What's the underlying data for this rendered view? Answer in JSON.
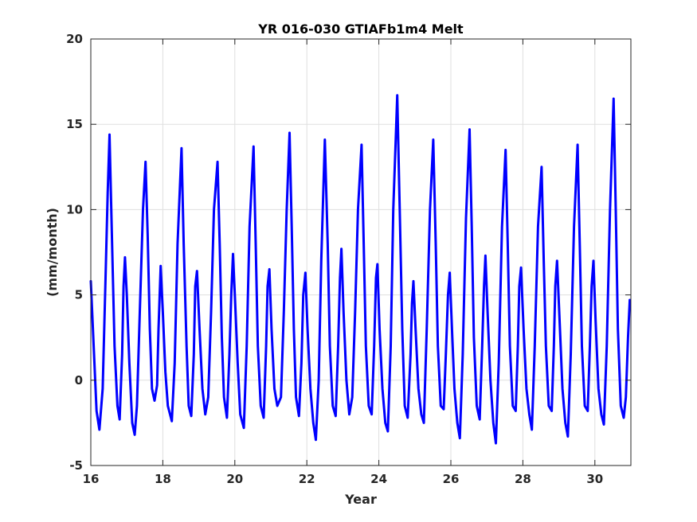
{
  "chart_data": {
    "type": "line",
    "title": "YR 016-030 GTIAFb1m4 Melt",
    "xlabel": "Year",
    "ylabel": "(mm/month)",
    "xlim": [
      16,
      31
    ],
    "ylim": [
      -5,
      20
    ],
    "xticks": [
      16,
      18,
      20,
      22,
      24,
      26,
      28,
      30
    ],
    "yticks": [
      -5,
      0,
      5,
      10,
      15,
      20
    ],
    "grid": true,
    "legend": "none",
    "series": [
      {
        "color": "#0000ff",
        "points": [
          [
            16.0,
            5.8
          ],
          [
            16.08,
            2.0
          ],
          [
            16.16,
            -1.8
          ],
          [
            16.24,
            -2.9
          ],
          [
            16.33,
            -0.5
          ],
          [
            16.41,
            6.0
          ],
          [
            16.47,
            11.0
          ],
          [
            16.52,
            14.4
          ],
          [
            16.58,
            9.0
          ],
          [
            16.66,
            2.0
          ],
          [
            16.74,
            -1.5
          ],
          [
            16.8,
            -2.3
          ],
          [
            16.87,
            1.5
          ],
          [
            16.91,
            5.5
          ],
          [
            16.95,
            7.2
          ],
          [
            17.0,
            5.0
          ],
          [
            17.07,
            1.0
          ],
          [
            17.15,
            -2.5
          ],
          [
            17.22,
            -3.2
          ],
          [
            17.28,
            -1.5
          ],
          [
            17.36,
            4.0
          ],
          [
            17.45,
            10.0
          ],
          [
            17.52,
            12.8
          ],
          [
            17.58,
            8.5
          ],
          [
            17.64,
            3.0
          ],
          [
            17.7,
            -0.5
          ],
          [
            17.77,
            -1.2
          ],
          [
            17.84,
            -0.3
          ],
          [
            17.88,
            3.0
          ],
          [
            17.94,
            6.7
          ],
          [
            18.0,
            4.0
          ],
          [
            18.07,
            0.5
          ],
          [
            18.14,
            -1.5
          ],
          [
            18.25,
            -2.4
          ],
          [
            18.33,
            1.0
          ],
          [
            18.41,
            8.0
          ],
          [
            18.52,
            13.6
          ],
          [
            18.58,
            8.0
          ],
          [
            18.66,
            2.0
          ],
          [
            18.72,
            -1.5
          ],
          [
            18.79,
            -2.1
          ],
          [
            18.86,
            1.5
          ],
          [
            18.9,
            5.5
          ],
          [
            18.95,
            6.4
          ],
          [
            19.02,
            3.0
          ],
          [
            19.1,
            -0.5
          ],
          [
            19.18,
            -2.0
          ],
          [
            19.26,
            -1.0
          ],
          [
            19.34,
            4.0
          ],
          [
            19.42,
            10.0
          ],
          [
            19.52,
            12.8
          ],
          [
            19.58,
            8.0
          ],
          [
            19.64,
            2.5
          ],
          [
            19.7,
            -1.0
          ],
          [
            19.78,
            -2.2
          ],
          [
            19.85,
            1.5
          ],
          [
            19.9,
            5.0
          ],
          [
            19.95,
            7.4
          ],
          [
            20.0,
            5.0
          ],
          [
            20.08,
            1.0
          ],
          [
            20.15,
            -2.0
          ],
          [
            20.25,
            -2.8
          ],
          [
            20.33,
            2.0
          ],
          [
            20.41,
            9.0
          ],
          [
            20.52,
            13.7
          ],
          [
            20.58,
            8.0
          ],
          [
            20.64,
            2.0
          ],
          [
            20.72,
            -1.5
          ],
          [
            20.8,
            -2.2
          ],
          [
            20.87,
            2.0
          ],
          [
            20.91,
            5.5
          ],
          [
            20.96,
            6.5
          ],
          [
            21.02,
            3.0
          ],
          [
            21.1,
            -0.5
          ],
          [
            21.18,
            -1.5
          ],
          [
            21.28,
            -1.0
          ],
          [
            21.36,
            4.0
          ],
          [
            21.44,
            10.0
          ],
          [
            21.52,
            14.5
          ],
          [
            21.58,
            9.0
          ],
          [
            21.64,
            3.0
          ],
          [
            21.7,
            -1.0
          ],
          [
            21.78,
            -2.1
          ],
          [
            21.85,
            1.0
          ],
          [
            21.9,
            5.0
          ],
          [
            21.96,
            6.3
          ],
          [
            22.02,
            3.0
          ],
          [
            22.1,
            -0.5
          ],
          [
            22.18,
            -2.5
          ],
          [
            22.25,
            -3.5
          ],
          [
            22.33,
            0.0
          ],
          [
            22.4,
            7.0
          ],
          [
            22.5,
            14.1
          ],
          [
            22.58,
            8.0
          ],
          [
            22.64,
            2.0
          ],
          [
            22.72,
            -1.5
          ],
          [
            22.8,
            -2.1
          ],
          [
            22.87,
            2.0
          ],
          [
            22.92,
            6.0
          ],
          [
            22.96,
            7.7
          ],
          [
            23.02,
            4.0
          ],
          [
            23.1,
            0.0
          ],
          [
            23.18,
            -2.0
          ],
          [
            23.26,
            -1.0
          ],
          [
            23.34,
            4.0
          ],
          [
            23.42,
            10.0
          ],
          [
            23.52,
            13.8
          ],
          [
            23.58,
            8.0
          ],
          [
            23.64,
            2.0
          ],
          [
            23.72,
            -1.5
          ],
          [
            23.8,
            -2.0
          ],
          [
            23.87,
            2.0
          ],
          [
            23.92,
            6.0
          ],
          [
            23.96,
            6.8
          ],
          [
            24.02,
            3.0
          ],
          [
            24.1,
            -0.5
          ],
          [
            24.18,
            -2.5
          ],
          [
            24.25,
            -3.0
          ],
          [
            24.33,
            2.0
          ],
          [
            24.4,
            10.0
          ],
          [
            24.51,
            16.7
          ],
          [
            24.58,
            10.0
          ],
          [
            24.65,
            3.0
          ],
          [
            24.72,
            -1.5
          ],
          [
            24.8,
            -2.2
          ],
          [
            24.88,
            1.5
          ],
          [
            24.92,
            4.5
          ],
          [
            24.96,
            5.8
          ],
          [
            25.02,
            3.0
          ],
          [
            25.1,
            -0.5
          ],
          [
            25.18,
            -2.0
          ],
          [
            25.25,
            -2.5
          ],
          [
            25.33,
            3.0
          ],
          [
            25.42,
            10.0
          ],
          [
            25.51,
            14.1
          ],
          [
            25.58,
            8.0
          ],
          [
            25.64,
            2.0
          ],
          [
            25.72,
            -1.5
          ],
          [
            25.8,
            -1.7
          ],
          [
            25.86,
            1.5
          ],
          [
            25.92,
            5.0
          ],
          [
            25.97,
            6.3
          ],
          [
            26.03,
            3.0
          ],
          [
            26.1,
            -0.5
          ],
          [
            26.18,
            -2.5
          ],
          [
            26.25,
            -3.4
          ],
          [
            26.33,
            1.5
          ],
          [
            26.42,
            9.5
          ],
          [
            26.52,
            14.7
          ],
          [
            26.58,
            9.0
          ],
          [
            26.64,
            2.5
          ],
          [
            26.72,
            -1.5
          ],
          [
            26.8,
            -2.3
          ],
          [
            26.87,
            2.0
          ],
          [
            26.92,
            5.5
          ],
          [
            26.96,
            7.3
          ],
          [
            27.02,
            4.0
          ],
          [
            27.1,
            0.0
          ],
          [
            27.18,
            -2.5
          ],
          [
            27.25,
            -3.7
          ],
          [
            27.33,
            1.0
          ],
          [
            27.42,
            9.0
          ],
          [
            27.52,
            13.5
          ],
          [
            27.58,
            8.0
          ],
          [
            27.64,
            2.0
          ],
          [
            27.72,
            -1.5
          ],
          [
            27.8,
            -1.8
          ],
          [
            27.86,
            2.0
          ],
          [
            27.9,
            5.5
          ],
          [
            27.95,
            6.6
          ],
          [
            28.02,
            3.0
          ],
          [
            28.1,
            -0.5
          ],
          [
            28.18,
            -2.0
          ],
          [
            28.25,
            -2.9
          ],
          [
            28.33,
            2.0
          ],
          [
            28.42,
            9.0
          ],
          [
            28.52,
            12.5
          ],
          [
            28.58,
            7.0
          ],
          [
            28.64,
            2.0
          ],
          [
            28.72,
            -1.5
          ],
          [
            28.8,
            -1.8
          ],
          [
            28.86,
            2.0
          ],
          [
            28.9,
            5.5
          ],
          [
            28.95,
            7.0
          ],
          [
            29.02,
            3.5
          ],
          [
            29.1,
            -0.5
          ],
          [
            29.18,
            -2.5
          ],
          [
            29.25,
            -3.3
          ],
          [
            29.33,
            1.5
          ],
          [
            29.42,
            9.0
          ],
          [
            29.52,
            13.8
          ],
          [
            29.58,
            8.0
          ],
          [
            29.64,
            2.0
          ],
          [
            29.72,
            -1.5
          ],
          [
            29.8,
            -1.8
          ],
          [
            29.86,
            2.0
          ],
          [
            29.91,
            5.5
          ],
          [
            29.96,
            7.0
          ],
          [
            30.02,
            3.5
          ],
          [
            30.1,
            -0.5
          ],
          [
            30.18,
            -2.0
          ],
          [
            30.25,
            -2.6
          ],
          [
            30.33,
            2.0
          ],
          [
            30.42,
            10.0
          ],
          [
            30.52,
            16.5
          ],
          [
            30.58,
            10.0
          ],
          [
            30.64,
            3.0
          ],
          [
            30.72,
            -1.5
          ],
          [
            30.8,
            -2.2
          ],
          [
            30.86,
            -1.0
          ],
          [
            30.92,
            2.5
          ],
          [
            30.97,
            4.7
          ]
        ]
      }
    ]
  }
}
